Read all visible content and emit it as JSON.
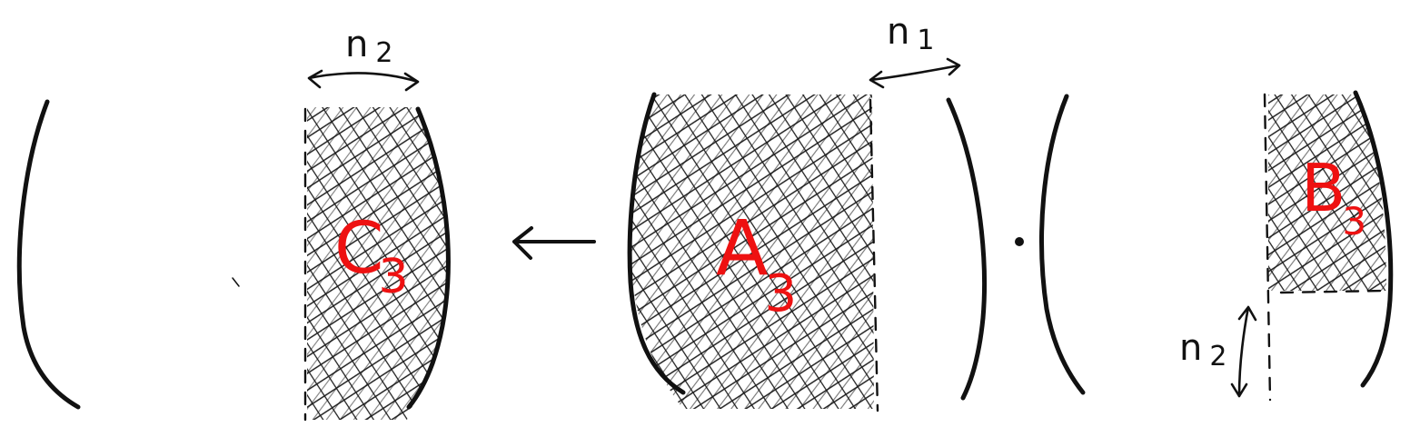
{
  "diagram": {
    "colors": {
      "ink": "#111111",
      "label": "#ee1111",
      "background": "#ffffff"
    },
    "result": {
      "label_main": "C",
      "label_sub": "3",
      "width_label_main": "n",
      "width_label_sub": "2"
    },
    "arrow": {
      "icon": "left-arrow-icon"
    },
    "matrix_a": {
      "label_main": "A",
      "label_sub": "3",
      "width_label_main": "n",
      "width_label_sub": "1"
    },
    "operator": {
      "icon": "multiplication-dot-icon"
    },
    "matrix_b": {
      "label_main": "B",
      "label_sub": "3",
      "height_label_main": "n",
      "height_label_sub": "2"
    }
  }
}
